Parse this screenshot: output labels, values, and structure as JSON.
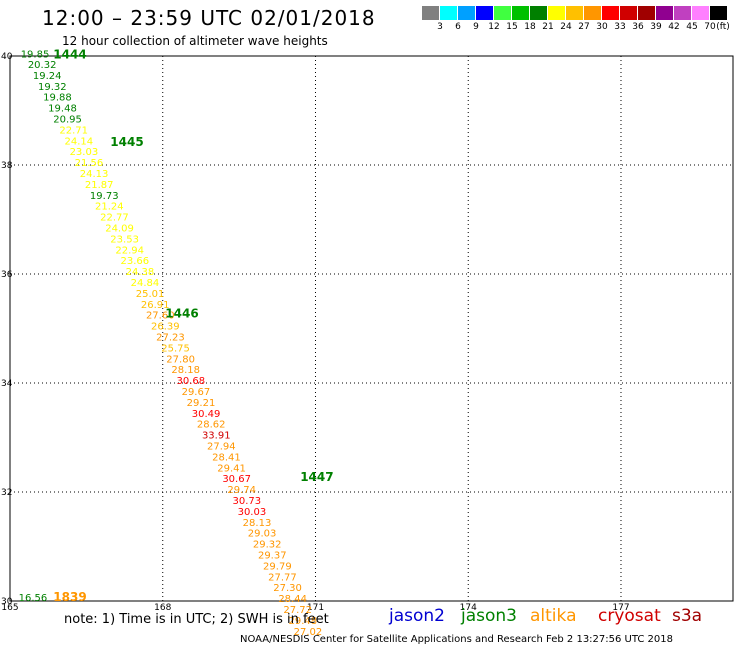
{
  "title": "12:00 – 23:59 UTC 02/01/2018",
  "subtitle": "12 hour collection of altimeter wave heights",
  "legend": {
    "colors": [
      "#808080",
      "#00ffff",
      "#00a0ff",
      "#0000ff",
      "#40ff40",
      "#00c000",
      "#008000",
      "#ffff00",
      "#ffc000",
      "#ff9600",
      "#ff0000",
      "#d00000",
      "#a00000",
      "#900090",
      "#c040c0",
      "#ff80ff",
      "#000000"
    ],
    "labels": [
      "3",
      "6",
      "9",
      "12",
      "15",
      "18",
      "21",
      "24",
      "27",
      "30",
      "33",
      "36",
      "39",
      "42",
      "45",
      "70",
      "(ft)"
    ]
  },
  "axes": {
    "lat_ticks": [
      "40",
      "38",
      "36",
      "34",
      "32",
      "30"
    ],
    "lon_ticks": [
      "165",
      "168",
      "171",
      "174",
      "177"
    ],
    "lat_range": [
      30,
      40
    ],
    "lon_range": [
      165,
      179.2
    ]
  },
  "chart_data": {
    "type": "scatter",
    "x_axis": "longitude",
    "y_axis": "latitude",
    "points": [
      {
        "lon": 165.21,
        "lat": 39.97,
        "swh": "19.85",
        "color": "#008000"
      },
      {
        "lon": 165.35,
        "lat": 39.78,
        "swh": "20.32",
        "color": "#008000"
      },
      {
        "lon": 165.45,
        "lat": 39.58,
        "swh": "19.24",
        "color": "#008000"
      },
      {
        "lon": 165.55,
        "lat": 39.38,
        "swh": "19.32",
        "color": "#008000"
      },
      {
        "lon": 165.65,
        "lat": 39.18,
        "swh": "19.88",
        "color": "#008000"
      },
      {
        "lon": 165.75,
        "lat": 38.98,
        "swh": "19.48",
        "color": "#008000"
      },
      {
        "lon": 165.85,
        "lat": 38.78,
        "swh": "20.95",
        "color": "#008000"
      },
      {
        "lon": 165.97,
        "lat": 38.58,
        "swh": "22.71",
        "color": "#ffff00"
      },
      {
        "lon": 166.07,
        "lat": 38.38,
        "swh": "24.14",
        "color": "#ffff00"
      },
      {
        "lon": 166.17,
        "lat": 38.18,
        "swh": "23.03",
        "color": "#ffff00"
      },
      {
        "lon": 166.27,
        "lat": 37.98,
        "swh": "21.56",
        "color": "#ffff00"
      },
      {
        "lon": 166.37,
        "lat": 37.78,
        "swh": "24.13",
        "color": "#ffff00"
      },
      {
        "lon": 166.47,
        "lat": 37.58,
        "swh": "21.87",
        "color": "#ffff00"
      },
      {
        "lon": 166.57,
        "lat": 37.38,
        "swh": "19.73",
        "color": "#008000"
      },
      {
        "lon": 166.67,
        "lat": 37.18,
        "swh": "21.24",
        "color": "#ffff00"
      },
      {
        "lon": 166.77,
        "lat": 36.98,
        "swh": "22.77",
        "color": "#ffff00"
      },
      {
        "lon": 166.87,
        "lat": 36.78,
        "swh": "24.09",
        "color": "#ffff00"
      },
      {
        "lon": 166.97,
        "lat": 36.58,
        "swh": "23.53",
        "color": "#ffff00"
      },
      {
        "lon": 167.07,
        "lat": 36.38,
        "swh": "22.94",
        "color": "#ffff00"
      },
      {
        "lon": 167.17,
        "lat": 36.18,
        "swh": "23.66",
        "color": "#ffff00"
      },
      {
        "lon": 167.27,
        "lat": 35.98,
        "swh": "24.38",
        "color": "#ffff00"
      },
      {
        "lon": 167.37,
        "lat": 35.78,
        "swh": "24.84",
        "color": "#ffff00"
      },
      {
        "lon": 167.47,
        "lat": 35.58,
        "swh": "25.01",
        "color": "#ffc000"
      },
      {
        "lon": 167.57,
        "lat": 35.38,
        "swh": "26.91",
        "color": "#ffc000"
      },
      {
        "lon": 167.67,
        "lat": 35.18,
        "swh": "27.60",
        "color": "#ff9600"
      },
      {
        "lon": 167.77,
        "lat": 34.98,
        "swh": "26.39",
        "color": "#ffc000"
      },
      {
        "lon": 167.87,
        "lat": 34.78,
        "swh": "27.23",
        "color": "#ff9600"
      },
      {
        "lon": 167.97,
        "lat": 34.58,
        "swh": "25.75",
        "color": "#ffc000"
      },
      {
        "lon": 168.07,
        "lat": 34.38,
        "swh": "27.80",
        "color": "#ff9600"
      },
      {
        "lon": 168.17,
        "lat": 34.18,
        "swh": "28.18",
        "color": "#ff9600"
      },
      {
        "lon": 168.27,
        "lat": 33.98,
        "swh": "30.68",
        "color": "#ff0000"
      },
      {
        "lon": 168.37,
        "lat": 33.78,
        "swh": "29.67",
        "color": "#ff9600"
      },
      {
        "lon": 168.47,
        "lat": 33.58,
        "swh": "29.21",
        "color": "#ff9600"
      },
      {
        "lon": 168.57,
        "lat": 33.38,
        "swh": "30.49",
        "color": "#ff0000"
      },
      {
        "lon": 168.67,
        "lat": 33.18,
        "swh": "28.62",
        "color": "#ff9600"
      },
      {
        "lon": 168.77,
        "lat": 32.98,
        "swh": "33.91",
        "color": "#d00000"
      },
      {
        "lon": 168.87,
        "lat": 32.78,
        "swh": "27.94",
        "color": "#ff9600"
      },
      {
        "lon": 168.97,
        "lat": 32.58,
        "swh": "28.41",
        "color": "#ff9600"
      },
      {
        "lon": 169.07,
        "lat": 32.38,
        "swh": "29.41",
        "color": "#ff9600"
      },
      {
        "lon": 169.17,
        "lat": 32.18,
        "swh": "30.67",
        "color": "#ff0000"
      },
      {
        "lon": 169.27,
        "lat": 31.98,
        "swh": "29.74",
        "color": "#ff9600"
      },
      {
        "lon": 169.37,
        "lat": 31.78,
        "swh": "30.73",
        "color": "#ff0000"
      },
      {
        "lon": 169.47,
        "lat": 31.58,
        "swh": "30.03",
        "color": "#ff0000"
      },
      {
        "lon": 169.57,
        "lat": 31.38,
        "swh": "28.13",
        "color": "#ff9600"
      },
      {
        "lon": 169.67,
        "lat": 31.18,
        "swh": "29.03",
        "color": "#ff9600"
      },
      {
        "lon": 169.77,
        "lat": 30.98,
        "swh": "29.32",
        "color": "#ff9600"
      },
      {
        "lon": 169.87,
        "lat": 30.78,
        "swh": "29.37",
        "color": "#ff9600"
      },
      {
        "lon": 169.97,
        "lat": 30.58,
        "swh": "29.79",
        "color": "#ff9600"
      },
      {
        "lon": 170.07,
        "lat": 30.38,
        "swh": "27.77",
        "color": "#ff9600"
      },
      {
        "lon": 170.17,
        "lat": 30.18,
        "swh": "27.30",
        "color": "#ff9600"
      },
      {
        "lon": 170.27,
        "lat": 29.98,
        "swh": "28.44",
        "color": "#ff9600"
      },
      {
        "lon": 170.37,
        "lat": 29.78,
        "swh": "27.72",
        "color": "#ff9600"
      },
      {
        "lon": 170.47,
        "lat": 29.58,
        "swh": "29.48",
        "color": "#ff9600"
      },
      {
        "lon": 170.57,
        "lat": 29.38,
        "swh": "27.02",
        "color": "#ff9600"
      },
      {
        "lon": 165.17,
        "lat": 30.0,
        "swh": "16.56",
        "color": "#008000"
      }
    ],
    "time_labels": [
      {
        "lon": 165.85,
        "lat": 39.95,
        "text": "1444",
        "color": "#008000"
      },
      {
        "lon": 166.97,
        "lat": 38.35,
        "text": "1445",
        "color": "#008000"
      },
      {
        "lon": 168.05,
        "lat": 35.2,
        "text": "1446",
        "color": "#008000"
      },
      {
        "lon": 170.7,
        "lat": 32.2,
        "text": "1447",
        "color": "#008000"
      },
      {
        "lon": 165.85,
        "lat": 30.0,
        "text": "1839",
        "color": "#ff9600"
      }
    ]
  },
  "note": "note:  1) Time is in UTC;  2) SWH is in feet",
  "satellites": [
    {
      "name": "jason2",
      "color": "#0000d0"
    },
    {
      "name": "jason3",
      "color": "#008000"
    },
    {
      "name": "altika",
      "color": "#ff9600"
    },
    {
      "name": "cryosat",
      "color": "#d00000"
    },
    {
      "name": "s3a",
      "color": "#a00000"
    }
  ],
  "footer": "NOAA/NESDIS Center for Satellite Applications and Research    Feb  2 13:27:56 UTC 2018"
}
